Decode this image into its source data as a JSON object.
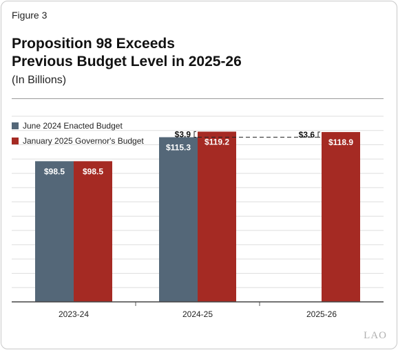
{
  "figure_label": "Figure 3",
  "title_lines": [
    "Proposition 98 Exceeds",
    "Previous Budget Level in 2025-26"
  ],
  "subtitle": "(In Billions)",
  "legend": [
    {
      "label": "June 2024 Enacted Budget",
      "color": "#546778"
    },
    {
      "label": "January 2025 Governor's Budget",
      "color": "#a52a23"
    }
  ],
  "chart_data": {
    "type": "bar",
    "categories": [
      "2023-24",
      "2024-25",
      "2025-26"
    ],
    "series": [
      {
        "name": "June 2024 Enacted Budget",
        "values": [
          98.5,
          115.3,
          null
        ],
        "labels": [
          "$98.5",
          "$115.3",
          ""
        ],
        "color": "#546778"
      },
      {
        "name": "January 2025 Governor's Budget",
        "values": [
          98.5,
          119.2,
          118.9
        ],
        "labels": [
          "$98.5",
          "$119.2",
          "$118.9"
        ],
        "color": "#a52a23"
      }
    ],
    "ylim": [
      0,
      130
    ],
    "grid": true,
    "annotations": [
      {
        "category": "2024-25",
        "text": "$3.9"
      },
      {
        "category": "2025-26",
        "text": "$3.6"
      }
    ],
    "reference_line": {
      "value": 115.3,
      "from": "2024-25",
      "to": "2025-26",
      "style": "dashed"
    }
  },
  "watermark": "LAO"
}
